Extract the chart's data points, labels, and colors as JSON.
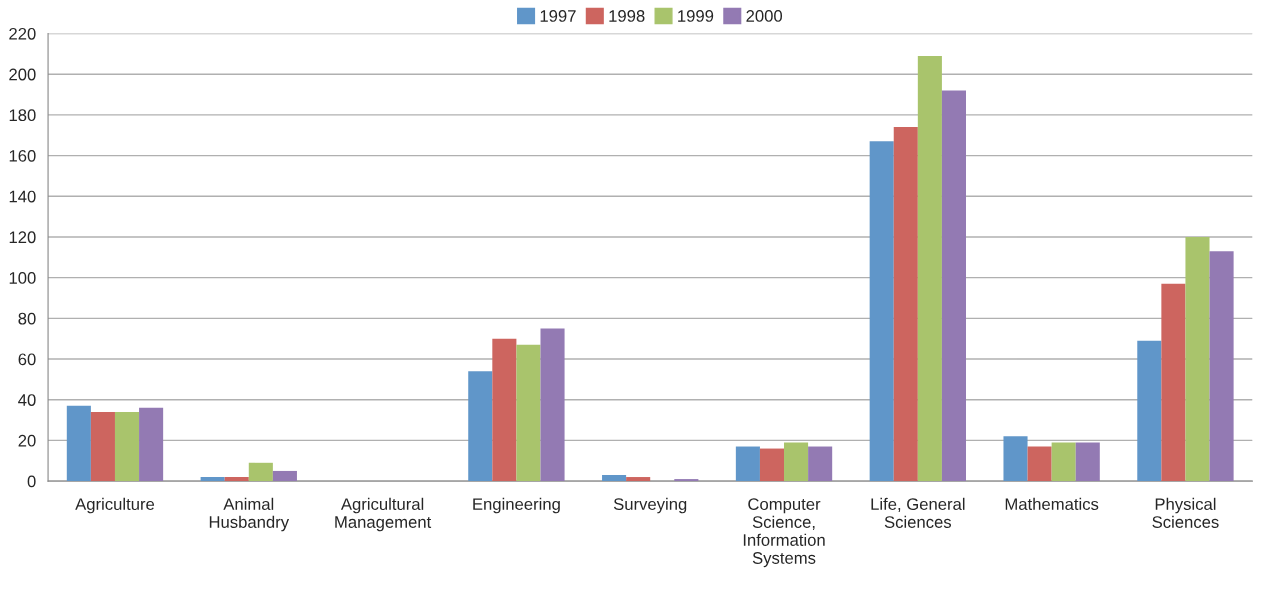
{
  "chart_data": {
    "type": "bar",
    "categories": [
      "Agriculture",
      "Animal\nHusbandry",
      "Agricultural\nManagement",
      "Engineering",
      "Surveying",
      "Computer\nScience,\nInformation\nSystems",
      "Life, General\nSciences",
      "Mathematics",
      "Physical\nSciences"
    ],
    "series": [
      {
        "name": "1997",
        "color": "#6096c9",
        "values": [
          37,
          2,
          0,
          54,
          3,
          17,
          167,
          22,
          69
        ]
      },
      {
        "name": "1998",
        "color": "#cd655f",
        "values": [
          34,
          2,
          0,
          70,
          2,
          16,
          174,
          17,
          97
        ]
      },
      {
        "name": "1999",
        "color": "#a9c46c",
        "values": [
          34,
          9,
          0,
          67,
          0,
          19,
          209,
          19,
          120
        ]
      },
      {
        "name": "2000",
        "color": "#937ab3",
        "values": [
          36,
          5,
          0,
          75,
          1,
          17,
          192,
          19,
          113
        ]
      }
    ],
    "ylim": [
      0,
      220
    ],
    "yticks": [
      0,
      20,
      40,
      60,
      80,
      100,
      120,
      140,
      160,
      180,
      200,
      220
    ],
    "grid": "y",
    "legend": "top"
  }
}
